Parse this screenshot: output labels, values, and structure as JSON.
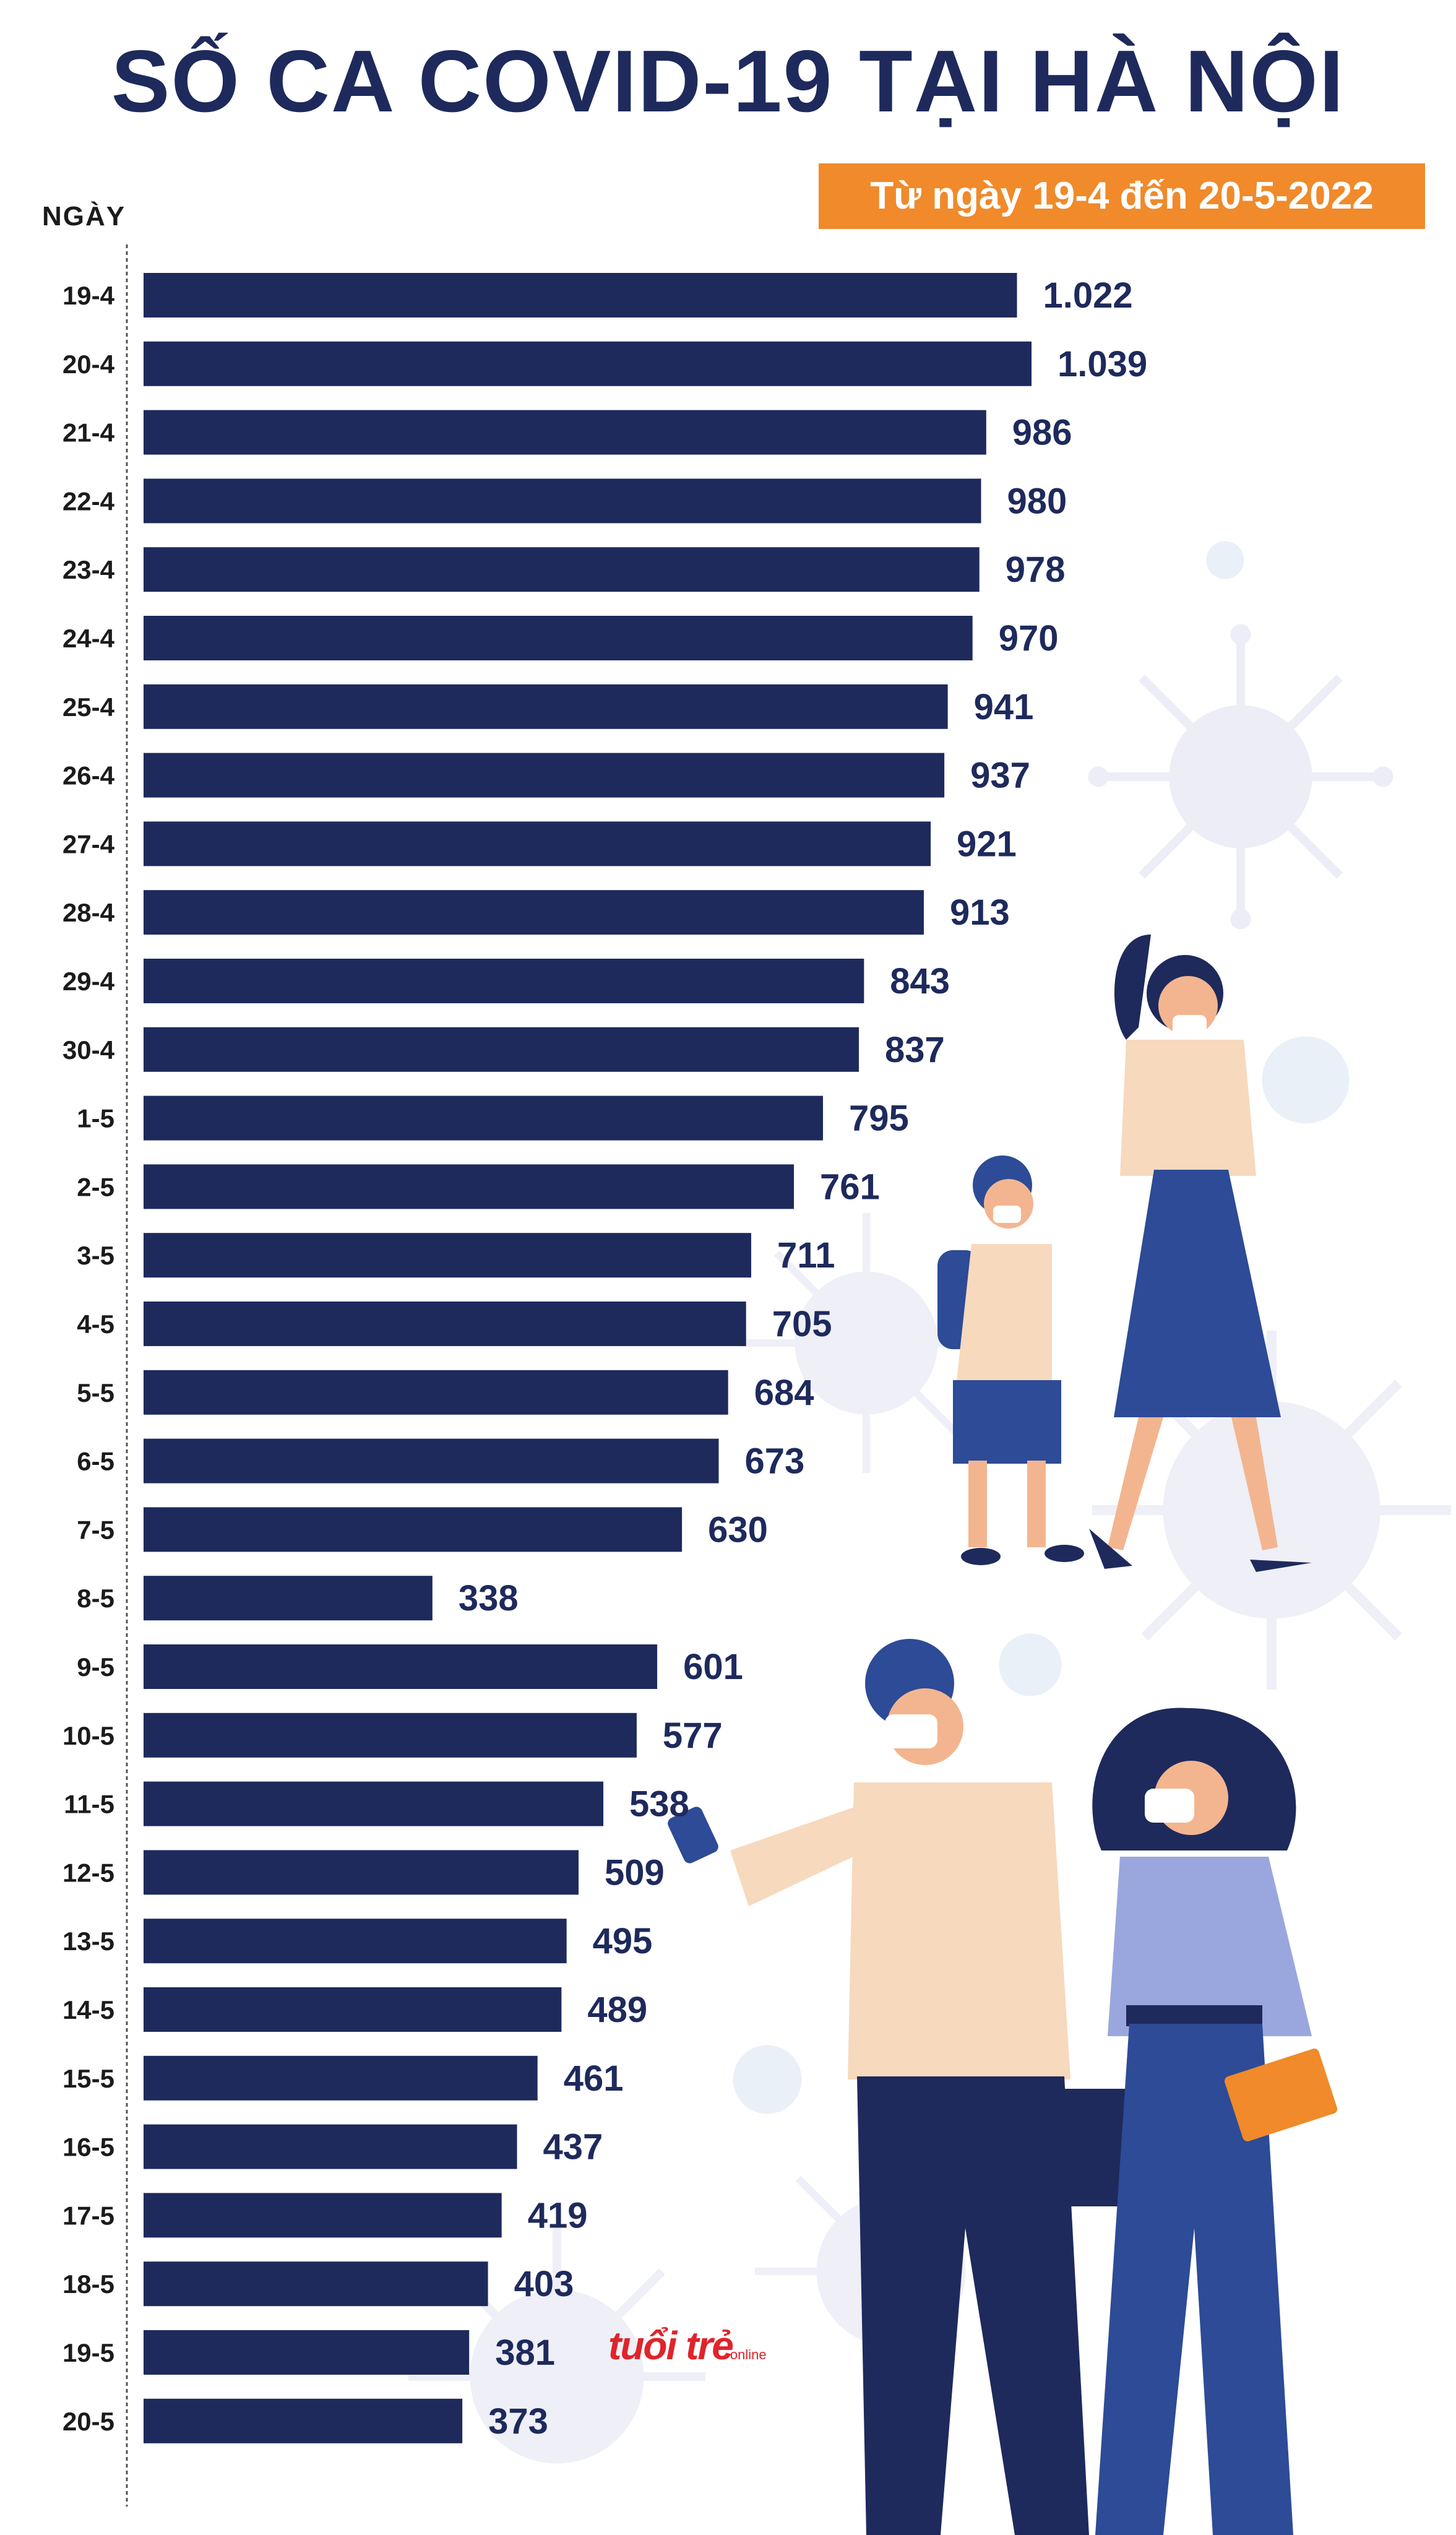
{
  "title": "SỐ CA COVID-19 TẠI HÀ NỘI",
  "subtitle": "Từ ngày 19-4 đến 20-5-2022",
  "logo": {
    "main": "tuổi trẻ",
    "sub": "online"
  },
  "colors": {
    "bar": "#1e2a5c",
    "accent": "#f08a2a",
    "title": "#1e2a5c"
  },
  "chart_data": {
    "type": "bar",
    "orientation": "horizontal",
    "title": "SỐ CA COVID-19 TẠI HÀ NỘI",
    "subtitle": "Từ ngày 19-4 đến 20-5-2022",
    "ylabel": "NGÀY",
    "xlabel": "",
    "xlim": [
      0,
      1039
    ],
    "categories": [
      "19-4",
      "20-4",
      "21-4",
      "22-4",
      "23-4",
      "24-4",
      "25-4",
      "26-4",
      "27-4",
      "28-4",
      "29-4",
      "30-4",
      "1-5",
      "2-5",
      "3-5",
      "4-5",
      "5-5",
      "6-5",
      "7-5",
      "8-5",
      "9-5",
      "10-5",
      "11-5",
      "12-5",
      "13-5",
      "14-5",
      "15-5",
      "16-5",
      "17-5",
      "18-5",
      "19-5",
      "20-5"
    ],
    "values": [
      1022,
      1039,
      986,
      980,
      978,
      970,
      941,
      937,
      921,
      913,
      843,
      837,
      795,
      761,
      711,
      705,
      684,
      673,
      630,
      338,
      601,
      577,
      538,
      509,
      495,
      489,
      461,
      437,
      419,
      403,
      381,
      373
    ],
    "value_labels": [
      "1.022",
      "1.039",
      "986",
      "980",
      "978",
      "970",
      "941",
      "937",
      "921",
      "913",
      "843",
      "837",
      "795",
      "761",
      "711",
      "705",
      "684",
      "673",
      "630",
      "338",
      "601",
      "577",
      "538",
      "509",
      "495",
      "489",
      "461",
      "437",
      "419",
      "403",
      "381",
      "373"
    ]
  }
}
